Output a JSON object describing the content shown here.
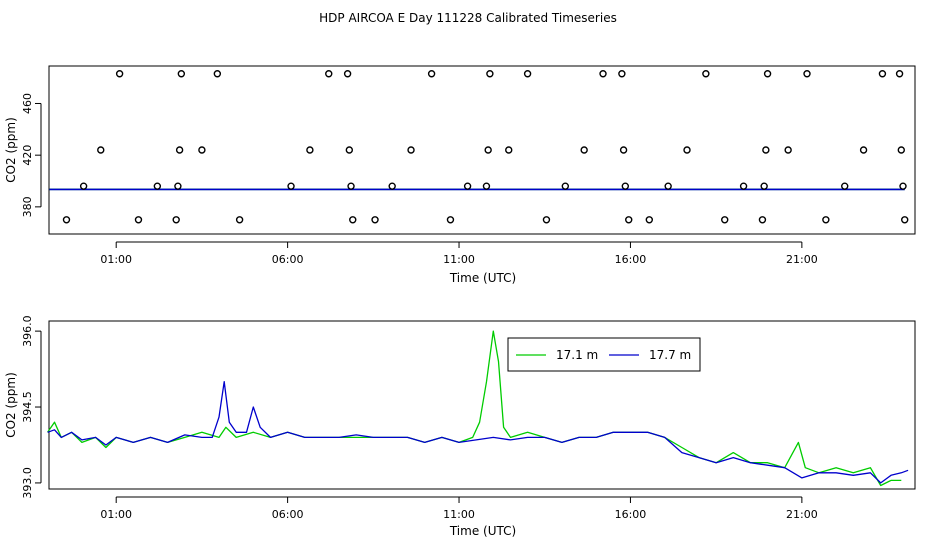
{
  "figure": {
    "title": "HDP AIRCOA E  Day 111228  Calibrated Timeseries"
  },
  "chart_data": [
    {
      "type": "scatter",
      "xlabel": "Time (UTC)",
      "ylabel": "CO2 (ppm)",
      "x_unit": "hours",
      "xlim": [
        -0.96,
        24.3
      ],
      "ylim": [
        359,
        489
      ],
      "xticks": [
        {
          "value": 1,
          "label": "01:00"
        },
        {
          "value": 6,
          "label": "06:00"
        },
        {
          "value": 11,
          "label": "11:00"
        },
        {
          "value": 16,
          "label": "16:00"
        },
        {
          "value": 21,
          "label": "21:00"
        }
      ],
      "yticks": [
        {
          "value": 380,
          "label": "380"
        },
        {
          "value": 420,
          "label": "420"
        },
        {
          "value": 460,
          "label": "460"
        }
      ],
      "outliers": {
        "color": "#000000",
        "points": [
          [
            -0.45,
            370
          ],
          [
            0.05,
            396
          ],
          [
            0.55,
            424
          ],
          [
            1.1,
            483
          ],
          [
            1.65,
            370
          ],
          [
            2.2,
            396
          ],
          [
            2.75,
            370
          ],
          [
            2.8,
            396
          ],
          [
            2.85,
            424
          ],
          [
            2.9,
            483
          ],
          [
            3.5,
            424
          ],
          [
            3.95,
            483
          ],
          [
            4.6,
            370
          ],
          [
            6.1,
            396
          ],
          [
            6.65,
            424
          ],
          [
            7.2,
            483
          ],
          [
            7.75,
            483
          ],
          [
            7.8,
            424
          ],
          [
            7.85,
            396
          ],
          [
            7.9,
            370
          ],
          [
            8.55,
            370
          ],
          [
            9.05,
            396
          ],
          [
            9.6,
            424
          ],
          [
            10.2,
            483
          ],
          [
            10.75,
            370
          ],
          [
            11.25,
            396
          ],
          [
            11.8,
            396
          ],
          [
            11.85,
            424
          ],
          [
            11.9,
            483
          ],
          [
            12.45,
            424
          ],
          [
            13.0,
            483
          ],
          [
            13.55,
            370
          ],
          [
            14.1,
            396
          ],
          [
            14.65,
            424
          ],
          [
            15.2,
            483
          ],
          [
            15.75,
            483
          ],
          [
            15.8,
            424
          ],
          [
            15.85,
            396
          ],
          [
            15.95,
            370
          ],
          [
            16.55,
            370
          ],
          [
            17.1,
            396
          ],
          [
            17.65,
            424
          ],
          [
            18.2,
            483
          ],
          [
            18.75,
            370
          ],
          [
            19.3,
            396
          ],
          [
            19.85,
            370
          ],
          [
            19.9,
            396
          ],
          [
            19.95,
            424
          ],
          [
            20.0,
            483
          ],
          [
            20.6,
            424
          ],
          [
            21.15,
            483
          ],
          [
            21.7,
            370
          ],
          [
            22.25,
            396
          ],
          [
            22.8,
            424
          ],
          [
            23.35,
            483
          ],
          [
            23.85,
            483
          ],
          [
            23.9,
            424
          ],
          [
            23.95,
            396
          ],
          [
            24.0,
            370
          ]
        ]
      },
      "series": [
        {
          "color": "#00cc00",
          "y": 393.6
        },
        {
          "color": "#0000cc",
          "y": 393.5
        }
      ]
    },
    {
      "type": "line",
      "xlabel": "Time (UTC)",
      "ylabel": "CO2 (ppm)",
      "x_unit": "hours",
      "xlim": [
        -0.96,
        24.3
      ],
      "ylim": [
        392.88,
        396.2
      ],
      "xticks": [
        {
          "value": 1,
          "label": "01:00"
        },
        {
          "value": 6,
          "label": "06:00"
        },
        {
          "value": 11,
          "label": "11:00"
        },
        {
          "value": 16,
          "label": "16:00"
        },
        {
          "value": 21,
          "label": "21:00"
        }
      ],
      "yticks": [
        {
          "value": 393.0,
          "label": "393.0"
        },
        {
          "value": 394.5,
          "label": "394.5"
        },
        {
          "value": 396.0,
          "label": "396.0"
        }
      ],
      "legend": {
        "placement": "top-center"
      },
      "series": [
        {
          "name": "17.1 m",
          "color": "#00cc00",
          "points": [
            [
              -1.0,
              394.0
            ],
            [
              -0.8,
              394.2
            ],
            [
              -0.6,
              393.9
            ],
            [
              -0.3,
              394.0
            ],
            [
              0,
              393.8
            ],
            [
              0.4,
              393.9
            ],
            [
              0.7,
              393.7
            ],
            [
              1.0,
              393.9
            ],
            [
              1.5,
              393.8
            ],
            [
              2.0,
              393.9
            ],
            [
              2.5,
              393.8
            ],
            [
              3.0,
              393.9
            ],
            [
              3.5,
              394.0
            ],
            [
              4.0,
              393.9
            ],
            [
              4.2,
              394.1
            ],
            [
              4.5,
              393.9
            ],
            [
              5.0,
              394.0
            ],
            [
              5.5,
              393.9
            ],
            [
              6.0,
              394.0
            ],
            [
              6.5,
              393.9
            ],
            [
              7.0,
              393.9
            ],
            [
              7.5,
              393.9
            ],
            [
              8.0,
              393.9
            ],
            [
              8.5,
              393.9
            ],
            [
              9.0,
              393.9
            ],
            [
              9.5,
              393.9
            ],
            [
              10.0,
              393.8
            ],
            [
              10.5,
              393.9
            ],
            [
              11.0,
              393.8
            ],
            [
              11.4,
              393.9
            ],
            [
              11.6,
              394.2
            ],
            [
              11.8,
              395.0
            ],
            [
              12.0,
              396.0
            ],
            [
              12.15,
              395.4
            ],
            [
              12.3,
              394.1
            ],
            [
              12.5,
              393.9
            ],
            [
              13.0,
              394.0
            ],
            [
              13.5,
              393.9
            ],
            [
              14.0,
              393.8
            ],
            [
              14.5,
              393.9
            ],
            [
              15.0,
              393.9
            ],
            [
              15.5,
              394.0
            ],
            [
              16.0,
              394.0
            ],
            [
              16.5,
              394.0
            ],
            [
              17.0,
              393.9
            ],
            [
              17.5,
              393.7
            ],
            [
              18.0,
              393.5
            ],
            [
              18.5,
              393.4
            ],
            [
              19.0,
              393.6
            ],
            [
              19.5,
              393.4
            ],
            [
              20.0,
              393.4
            ],
            [
              20.5,
              393.3
            ],
            [
              20.9,
              393.8
            ],
            [
              21.1,
              393.3
            ],
            [
              21.5,
              393.2
            ],
            [
              22.0,
              393.3
            ],
            [
              22.5,
              393.2
            ],
            [
              23.0,
              393.3
            ],
            [
              23.3,
              392.95
            ],
            [
              23.6,
              393.05
            ],
            [
              23.9,
              393.05
            ]
          ]
        },
        {
          "name": "17.7 m",
          "color": "#0000cc",
          "points": [
            [
              -1.0,
              394.0
            ],
            [
              -0.8,
              394.05
            ],
            [
              -0.6,
              393.9
            ],
            [
              -0.3,
              394.0
            ],
            [
              0,
              393.85
            ],
            [
              0.4,
              393.9
            ],
            [
              0.7,
              393.75
            ],
            [
              1.0,
              393.9
            ],
            [
              1.5,
              393.8
            ],
            [
              2.0,
              393.9
            ],
            [
              2.5,
              393.8
            ],
            [
              3.0,
              393.95
            ],
            [
              3.5,
              393.9
            ],
            [
              3.8,
              393.9
            ],
            [
              4.0,
              394.3
            ],
            [
              4.15,
              395.0
            ],
            [
              4.3,
              394.2
            ],
            [
              4.5,
              394.0
            ],
            [
              4.8,
              394.0
            ],
            [
              5.0,
              394.5
            ],
            [
              5.2,
              394.1
            ],
            [
              5.5,
              393.9
            ],
            [
              6.0,
              394.0
            ],
            [
              6.5,
              393.9
            ],
            [
              7.0,
              393.9
            ],
            [
              7.5,
              393.9
            ],
            [
              8.0,
              393.95
            ],
            [
              8.5,
              393.9
            ],
            [
              9.0,
              393.9
            ],
            [
              9.5,
              393.9
            ],
            [
              10.0,
              393.8
            ],
            [
              10.5,
              393.9
            ],
            [
              11.0,
              393.8
            ],
            [
              11.5,
              393.85
            ],
            [
              12.0,
              393.9
            ],
            [
              12.5,
              393.85
            ],
            [
              13.0,
              393.9
            ],
            [
              13.5,
              393.9
            ],
            [
              14.0,
              393.8
            ],
            [
              14.5,
              393.9
            ],
            [
              15.0,
              393.9
            ],
            [
              15.5,
              394.0
            ],
            [
              16.0,
              394.0
            ],
            [
              16.5,
              394.0
            ],
            [
              17.0,
              393.9
            ],
            [
              17.5,
              393.6
            ],
            [
              18.0,
              393.5
            ],
            [
              18.5,
              393.4
            ],
            [
              19.0,
              393.5
            ],
            [
              19.5,
              393.4
            ],
            [
              20.0,
              393.35
            ],
            [
              20.5,
              393.3
            ],
            [
              21.0,
              393.1
            ],
            [
              21.5,
              393.2
            ],
            [
              22.0,
              393.2
            ],
            [
              22.5,
              393.15
            ],
            [
              23.0,
              393.2
            ],
            [
              23.3,
              393.0
            ],
            [
              23.6,
              393.15
            ],
            [
              23.9,
              393.2
            ],
            [
              24.1,
              393.25
            ]
          ]
        }
      ]
    }
  ]
}
